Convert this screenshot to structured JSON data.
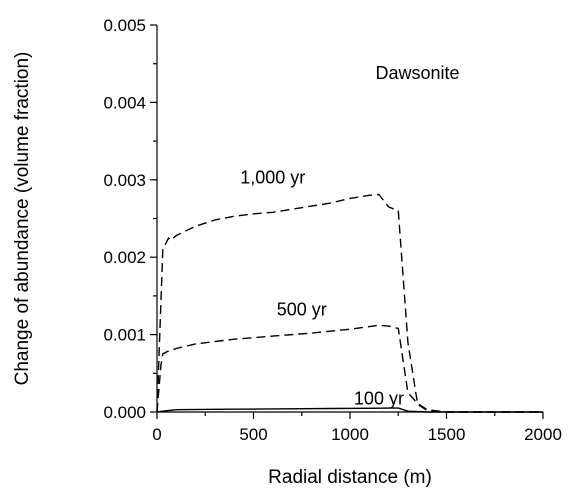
{
  "chart_data": {
    "type": "line",
    "title": "Dawsonite",
    "xlabel": "Radial distance (m)",
    "ylabel": "Change of abundance (volume fraction)",
    "xlim": [
      0,
      2000
    ],
    "ylim": [
      0,
      0.005
    ],
    "xticks": [
      "0",
      "500",
      "1000",
      "1500",
      "2000"
    ],
    "yticks": [
      "0.000",
      "0.001",
      "0.002",
      "0.003",
      "0.004",
      "0.005"
    ],
    "grid": false,
    "legend": "none",
    "series": [
      {
        "name": "100 yr",
        "style": "solid",
        "x": [
          0,
          30,
          60,
          100,
          300,
          600,
          900,
          1200,
          1250,
          1300,
          1400,
          2000
        ],
        "y": [
          0,
          1e-05,
          2e-05,
          3e-05,
          3.5e-05,
          4e-05,
          4.5e-05,
          5e-05,
          5e-05,
          1e-05,
          0,
          0
        ]
      },
      {
        "name": "500 yr",
        "style": "dashed",
        "x": [
          0,
          20,
          30,
          60,
          100,
          200,
          400,
          600,
          800,
          1000,
          1150,
          1200,
          1250,
          1300,
          1350,
          1400,
          1500,
          2000
        ],
        "y": [
          0,
          0.0006,
          0.00075,
          0.00079,
          0.00082,
          0.00088,
          0.00094,
          0.00098,
          0.00102,
          0.00107,
          0.00112,
          0.00111,
          0.00108,
          0.00025,
          0.00011,
          3e-05,
          0,
          0
        ]
      },
      {
        "name": "1,000 yr",
        "style": "dashed",
        "x": [
          0,
          30,
          50,
          60,
          70,
          100,
          200,
          300,
          400,
          500,
          600,
          700,
          800,
          900,
          1000,
          1100,
          1150,
          1200,
          1250,
          1300,
          1350,
          1400,
          1500,
          2000
        ],
        "y": [
          0,
          0.0021,
          0.0022,
          0.00225,
          0.00222,
          0.00228,
          0.0024,
          0.00248,
          0.00253,
          0.00256,
          0.00258,
          0.00262,
          0.00266,
          0.0027,
          0.00276,
          0.0028,
          0.00281,
          0.00265,
          0.0026,
          0.0009,
          0.0001,
          2e-05,
          0,
          0
        ]
      }
    ],
    "annotations": [
      {
        "text": "Dawsonite",
        "x": 1350,
        "y": 0.0043
      },
      {
        "text": "1,000 yr",
        "x": 600,
        "y": 0.00295
      },
      {
        "text": "500 yr",
        "x": 750,
        "y": 0.00125
      },
      {
        "text": "100 yr",
        "x": 1150,
        "y": 0.0001
      }
    ]
  }
}
